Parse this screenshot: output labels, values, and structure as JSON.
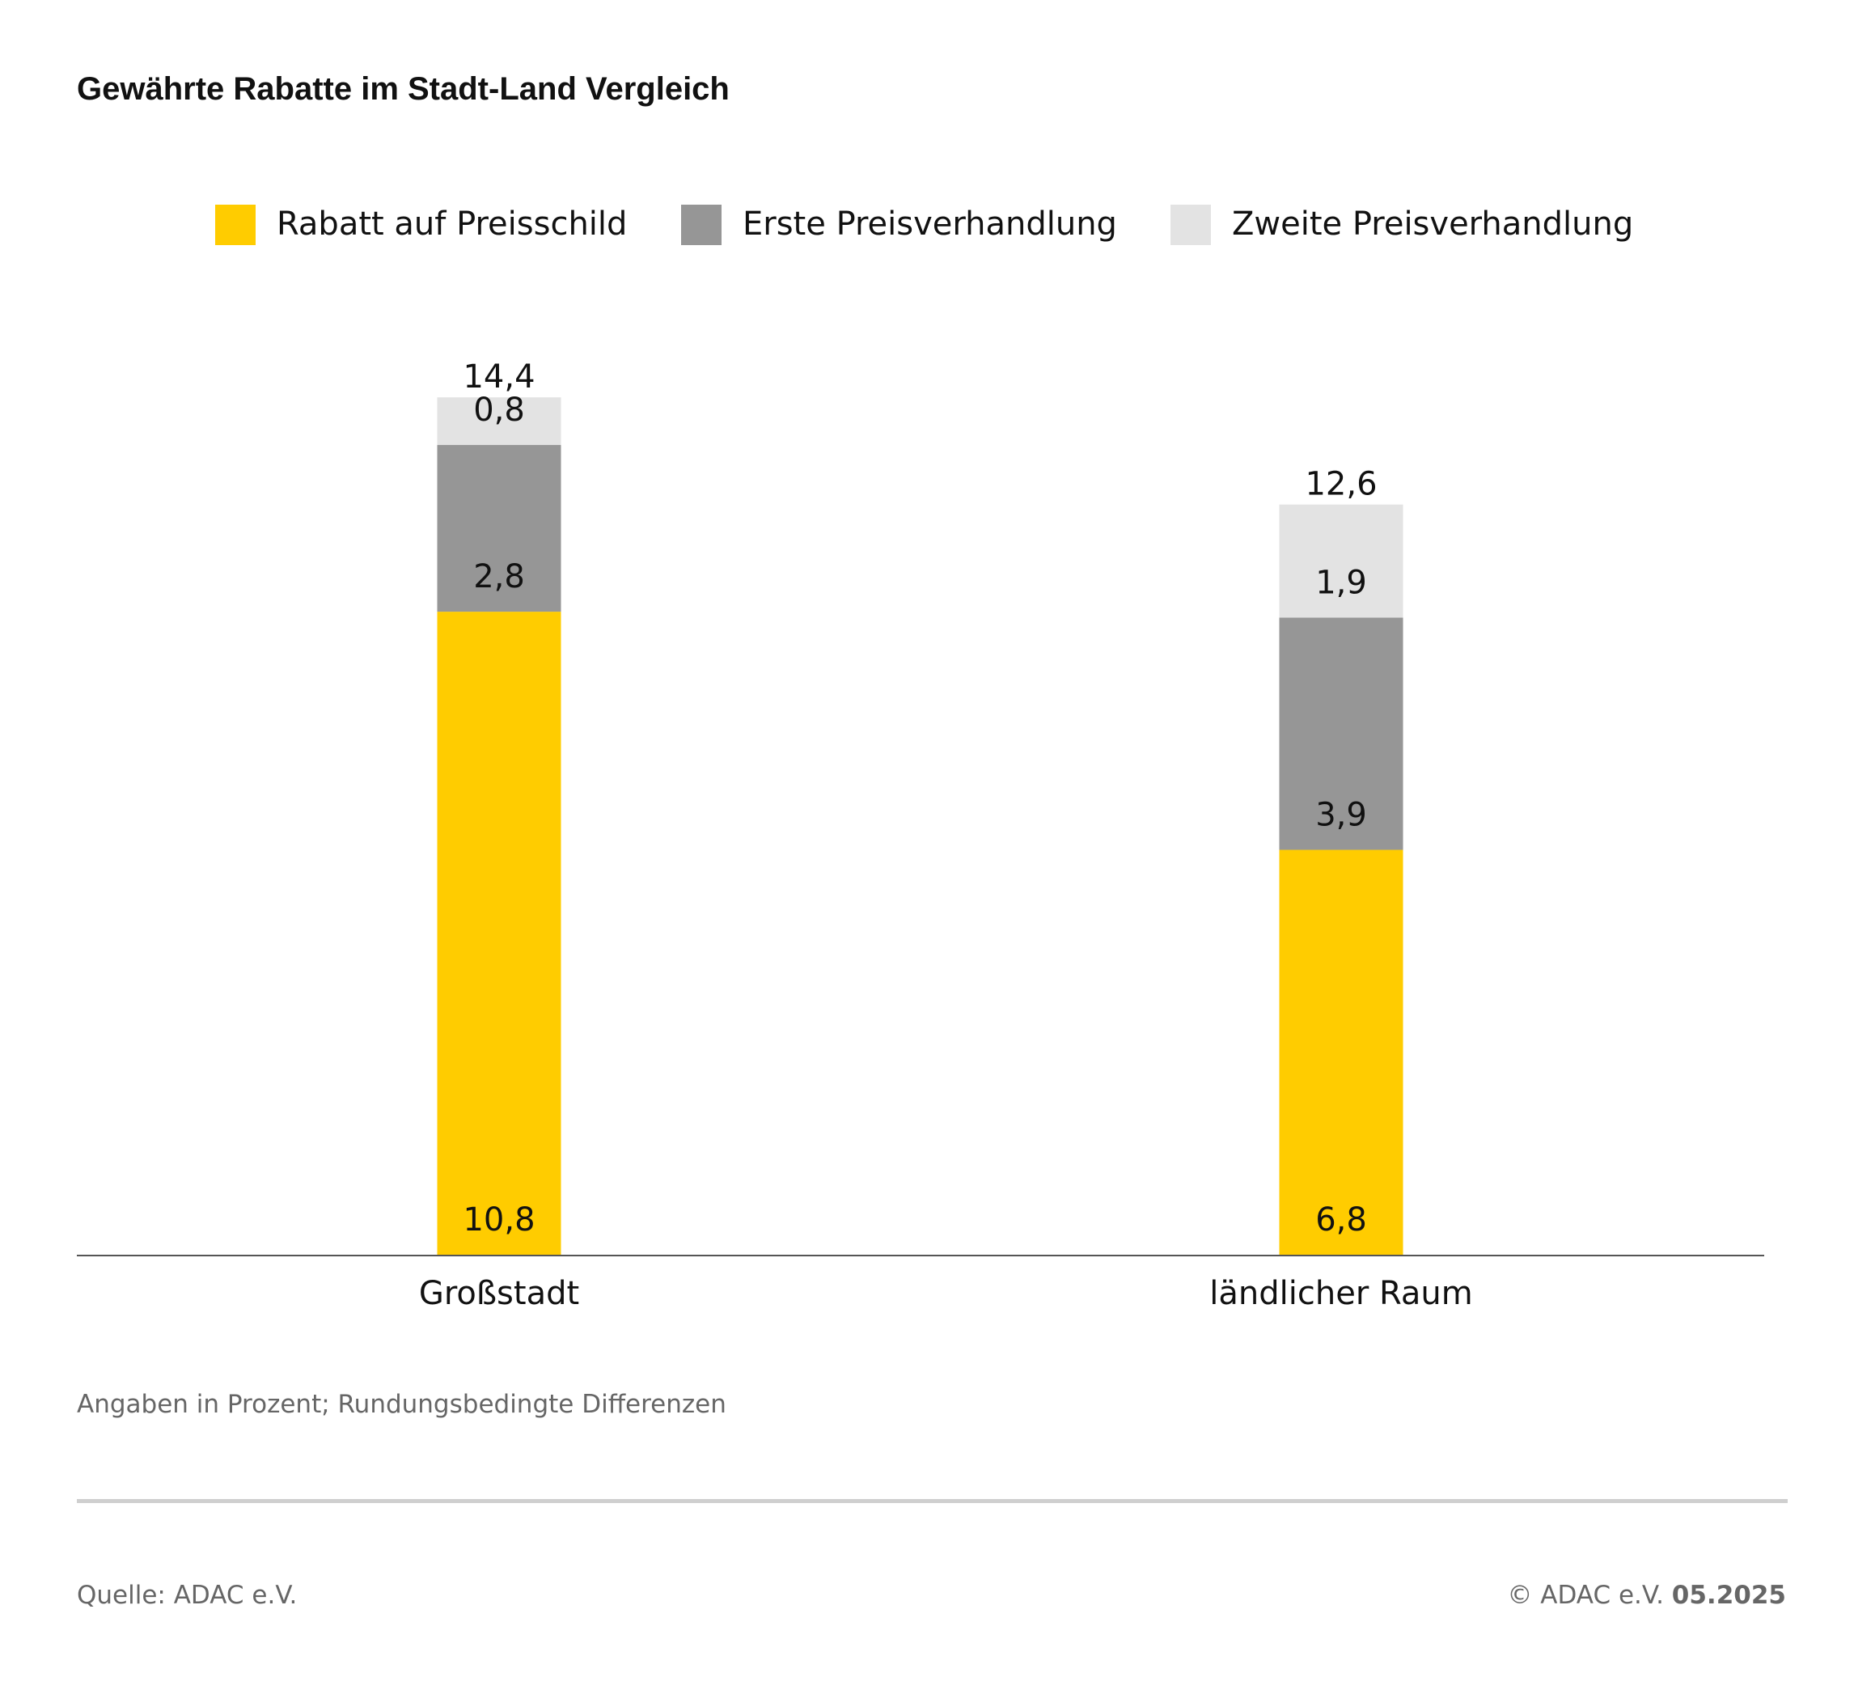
{
  "chart_data": {
    "type": "bar",
    "stacked": true,
    "title": "Gewährte Rabatte im Stadt-Land Vergleich",
    "categories": [
      "Großstadt",
      "ländlicher Raum"
    ],
    "series": [
      {
        "name": "Rabatt auf Preisschild",
        "color": "#FFCC00",
        "values": [
          10.8,
          6.8
        ],
        "labels": [
          "10,8",
          "6,8"
        ]
      },
      {
        "name": "Erste Preisverhandlung",
        "color": "#969696",
        "values": [
          2.8,
          3.9
        ],
        "labels": [
          "2,8",
          "3,9"
        ]
      },
      {
        "name": "Zweite Preisverhandlung",
        "color": "#E3E3E3",
        "values": [
          0.8,
          1.9
        ],
        "labels": [
          "0,8",
          "1,9"
        ]
      }
    ],
    "totals": [
      14.4,
      12.6
    ],
    "total_labels": [
      "14,4",
      "12,6"
    ],
    "xlabel": "",
    "ylabel": "",
    "ylim": [
      0,
      14.4
    ],
    "grid": false,
    "legend_position": "top-center"
  },
  "note": "Angaben in Prozent; Rundungsbedingte Differenzen",
  "footer": {
    "source": "Quelle: ADAC e.V.",
    "copyright": "© ADAC e.V.",
    "date": "05.2025"
  }
}
